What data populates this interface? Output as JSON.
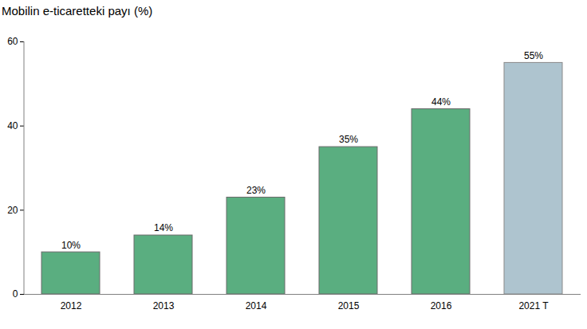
{
  "chart_data": {
    "type": "bar",
    "title": "Mobilin e-ticaretteki payı (%)",
    "categories": [
      "2012",
      "2013",
      "2014",
      "2015",
      "2016",
      "2021 T"
    ],
    "values": [
      10,
      14,
      23,
      35,
      44,
      55
    ],
    "value_labels": [
      "10%",
      "14%",
      "23%",
      "35%",
      "44%",
      "55%"
    ],
    "colors": [
      "#5aae80",
      "#5aae80",
      "#5aae80",
      "#5aae80",
      "#5aae80",
      "#aec4cf"
    ],
    "ylim": [
      0,
      60
    ],
    "yticks": [
      0,
      20,
      40,
      60
    ],
    "grid": false,
    "data_labels": true
  }
}
